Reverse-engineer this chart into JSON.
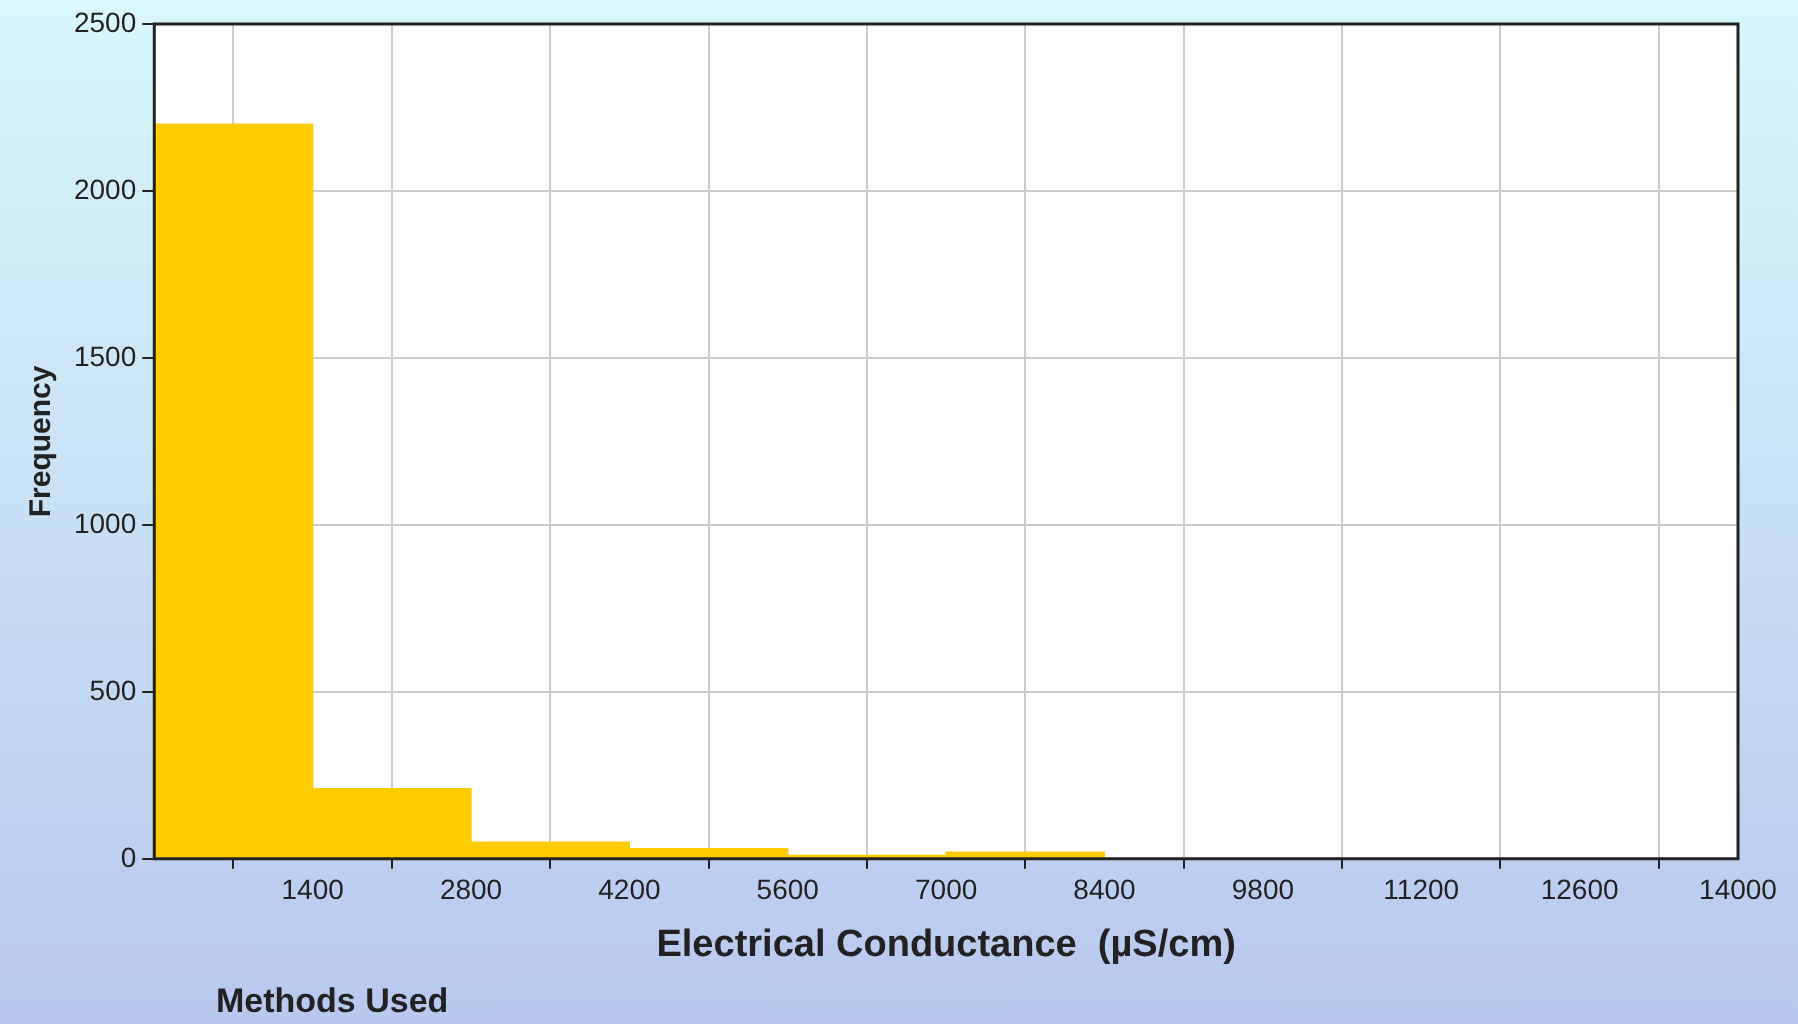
{
  "chart_data": {
    "type": "histogram",
    "xlabel": "Electrical Conductance  (µS/cm)",
    "ylabel": "Frequency",
    "bins": [
      0,
      1400,
      2800,
      4200,
      5600,
      7000,
      8400,
      9800,
      11200,
      12600,
      14000
    ],
    "values": [
      2200,
      210,
      50,
      30,
      10,
      20,
      0,
      0,
      0,
      0
    ],
    "color": "#ffcc00",
    "xlim": [
      0,
      14000
    ],
    "xticks": [
      {
        "value": 0,
        "label": null
      },
      1400,
      2800,
      4200,
      5600,
      7000,
      8400,
      9800,
      11200,
      12600,
      14000
    ],
    "ylim": [
      0,
      2500
    ],
    "yticks": [
      0,
      500,
      1000,
      1500,
      2000,
      2500
    ],
    "grid": true,
    "annotations": [
      "Methods Used"
    ]
  }
}
